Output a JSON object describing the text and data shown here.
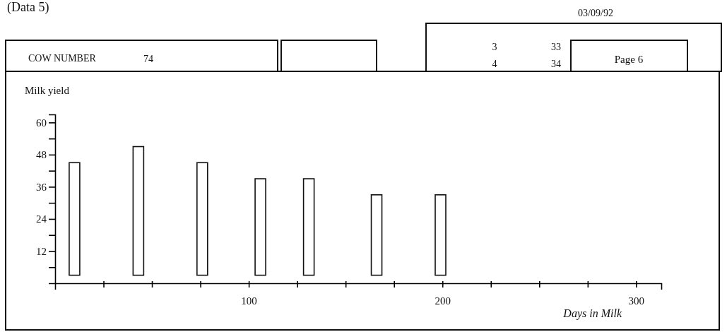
{
  "chart_data": {
    "type": "bar",
    "ylabel": "Milk yield",
    "xlabel": "Days in Milk",
    "annotations": [
      "(Data 5)",
      "03/09/92",
      "COW NUMBER",
      "74",
      "3",
      "33",
      "4",
      "34",
      "Page 6"
    ],
    "x": [
      10,
      43,
      76,
      106,
      131,
      166,
      199
    ],
    "values": [
      42,
      48,
      42,
      36,
      36,
      30,
      30
    ],
    "base": [
      3,
      3,
      3,
      3,
      3,
      3,
      3
    ],
    "color": "#ffffff",
    "xlim": [
      0,
      313
    ],
    "xticks": [
      {
        "value": 25,
        "label": null
      },
      {
        "value": 50,
        "label": null
      },
      {
        "value": 75,
        "label": null
      },
      100,
      {
        "value": 125,
        "label": null
      },
      {
        "value": 150,
        "label": null
      },
      {
        "value": 175,
        "label": null
      },
      200,
      {
        "value": 225,
        "label": null
      },
      {
        "value": 250,
        "label": null
      },
      {
        "value": 275,
        "label": null
      },
      300
    ],
    "ylim": [
      0,
      63
    ],
    "yticks": [
      {
        "value": 6,
        "label": null
      },
      12,
      {
        "value": 18,
        "label": null
      },
      24,
      {
        "value": 30,
        "label": null
      },
      36,
      {
        "value": 42,
        "label": null
      },
      48,
      {
        "value": 54,
        "label": null
      },
      60
    ],
    "grid": false
  }
}
